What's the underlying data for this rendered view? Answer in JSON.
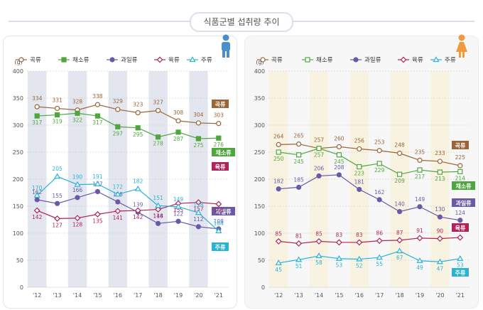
{
  "title": "식품군별 섭취량 추이",
  "colors": {
    "grain": "#9a6538",
    "veg": "#4fa63e",
    "fruit": "#6a5aa6",
    "meat": "#b0235a",
    "drink": "#2ab2d8",
    "male_band": "#e3e6ef",
    "female_band": "#f8f2e0"
  },
  "chart_data": [
    {
      "type": "line",
      "panel": "male",
      "icon": "male-person-icon",
      "y_unit": "(g)",
      "ylim": [
        0,
        400
      ],
      "yticks": [
        0,
        50,
        100,
        150,
        200,
        250,
        300,
        350,
        400
      ],
      "categories": [
        "'12",
        "'13",
        "'14",
        "'15",
        "'16",
        "'17",
        "'18",
        "'19",
        "'20",
        "'21"
      ],
      "series": [
        {
          "key": "grain",
          "name": "곡류",
          "marker": "circle-open",
          "values": [
            334,
            331,
            328,
            338,
            329,
            323,
            327,
            308,
            304,
            303
          ]
        },
        {
          "key": "veg",
          "name": "채소류",
          "marker": "square",
          "values": [
            317,
            319,
            322,
            317,
            297,
            295,
            278,
            287,
            275,
            276
          ]
        },
        {
          "key": "fruit",
          "name": "과일류",
          "marker": "circle",
          "values": [
            162,
            155,
            166,
            177,
            158,
            139,
            118,
            122,
            112,
            108
          ]
        },
        {
          "key": "meat",
          "name": "육류",
          "marker": "diamond-open",
          "values": [
            142,
            127,
            128,
            135,
            141,
            142,
            144,
            155,
            157,
            154
          ]
        },
        {
          "key": "drink",
          "name": "주류",
          "marker": "triangle-open",
          "values": [
            170,
            205,
            190,
            191,
            172,
            182,
            151,
            149,
            138,
            104
          ]
        }
      ]
    },
    {
      "type": "line",
      "panel": "female",
      "icon": "female-person-icon",
      "y_unit": "(g)",
      "ylim": [
        0,
        400
      ],
      "yticks": [
        0,
        50,
        100,
        150,
        200,
        250,
        300,
        350,
        400
      ],
      "categories": [
        "'12",
        "'13",
        "'14",
        "'15",
        "'16",
        "'17",
        "'18",
        "'19",
        "'20",
        "'21"
      ],
      "series": [
        {
          "key": "grain",
          "name": "곡류",
          "marker": "circle-open",
          "values": [
            264,
            265,
            257,
            260,
            256,
            253,
            248,
            235,
            233,
            225
          ]
        },
        {
          "key": "veg",
          "name": "채소류",
          "marker": "square-open",
          "values": [
            250,
            245,
            257,
            245,
            223,
            229,
            209,
            217,
            213,
            214
          ]
        },
        {
          "key": "fruit",
          "name": "과일류",
          "marker": "circle",
          "values": [
            182,
            185,
            206,
            208,
            181,
            162,
            140,
            149,
            130,
            124
          ]
        },
        {
          "key": "meat",
          "name": "육류",
          "marker": "diamond-open",
          "values": [
            85,
            81,
            85,
            83,
            83,
            86,
            87,
            91,
            90,
            92
          ]
        },
        {
          "key": "drink",
          "name": "주류",
          "marker": "triangle-open",
          "values": [
            45,
            51,
            58,
            53,
            52,
            55,
            67,
            49,
            47,
            53
          ]
        }
      ]
    }
  ]
}
